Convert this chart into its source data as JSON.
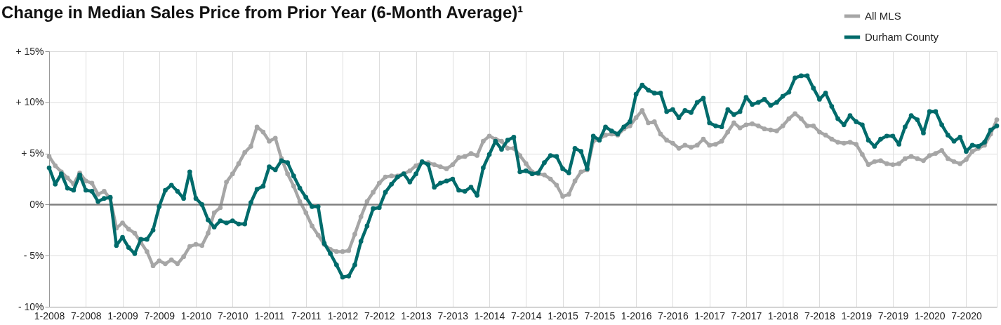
{
  "chart_data": {
    "type": "line",
    "title": "Change in Median Sales Price from Prior Year (6-Month Average)¹",
    "categories": [
      "1-2008",
      null,
      null,
      null,
      null,
      null,
      "7-2008",
      null,
      null,
      null,
      null,
      null,
      "1-2009",
      null,
      null,
      null,
      null,
      null,
      "7-2009",
      null,
      null,
      null,
      null,
      null,
      "1-2010",
      null,
      null,
      null,
      null,
      null,
      "7-2010",
      null,
      null,
      null,
      null,
      null,
      "1-2011",
      null,
      null,
      null,
      null,
      null,
      "7-2011",
      null,
      null,
      null,
      null,
      null,
      "1-2012",
      null,
      null,
      null,
      null,
      null,
      "7-2012",
      null,
      null,
      null,
      null,
      null,
      "1-2013",
      null,
      null,
      null,
      null,
      null,
      "7-2013",
      null,
      null,
      null,
      null,
      null,
      "1-2014",
      null,
      null,
      null,
      null,
      null,
      "7-2014",
      null,
      null,
      null,
      null,
      null,
      "1-2015",
      null,
      null,
      null,
      null,
      null,
      "7-2015",
      null,
      null,
      null,
      null,
      null,
      "1-2016",
      null,
      null,
      null,
      null,
      null,
      "7-2016",
      null,
      null,
      null,
      null,
      null,
      "1-2017",
      null,
      null,
      null,
      null,
      null,
      "7-2017",
      null,
      null,
      null,
      null,
      null,
      "1-2018",
      null,
      null,
      null,
      null,
      null,
      "7-2018",
      null,
      null,
      null,
      null,
      null,
      "1-2019",
      null,
      null,
      null,
      null,
      null,
      "7-2019",
      null,
      null,
      null,
      null,
      null,
      "1-2020",
      null,
      null,
      null,
      null,
      null,
      "7-2020",
      null,
      null,
      null,
      null,
      null
    ],
    "series": [
      {
        "name": "All MLS",
        "color": "#a6a6a6",
        "values": [
          4.7,
          3.8,
          3.2,
          2.6,
          2.0,
          3.1,
          2.3,
          2.1,
          1.0,
          1.3,
          0.6,
          -2.3,
          -1.8,
          -2.4,
          -2.8,
          -3.7,
          -4.6,
          -6.0,
          -5.5,
          -5.8,
          -5.4,
          -5.8,
          -5.1,
          -4.1,
          -3.9,
          -4.0,
          -2.8,
          -0.8,
          -0.3,
          2.2,
          3.0,
          4.0,
          5.1,
          5.7,
          7.6,
          7.1,
          6.2,
          6.5,
          4.5,
          3.0,
          1.8,
          0.3,
          -0.8,
          -2.1,
          -3.0,
          -3.9,
          -4.4,
          -4.6,
          -4.6,
          -4.5,
          -2.9,
          -1.2,
          0.3,
          1.2,
          2.1,
          2.7,
          2.8,
          2.8,
          3.0,
          3.3,
          3.8,
          4.1,
          4.1,
          3.9,
          3.7,
          3.5,
          3.9,
          4.6,
          4.7,
          5.0,
          4.8,
          6.2,
          6.7,
          6.4,
          6.2,
          5.5,
          5.5,
          4.8,
          4.0,
          3.2,
          3.0,
          2.9,
          2.5,
          1.9,
          0.8,
          1.0,
          2.3,
          3.2,
          3.4,
          6.2,
          6.4,
          6.8,
          6.9,
          6.8,
          7.4,
          7.7,
          8.5,
          9.2,
          8.0,
          8.1,
          6.9,
          6.3,
          6.0,
          5.5,
          5.8,
          5.6,
          5.8,
          6.4,
          5.8,
          5.9,
          6.2,
          7.1,
          8.0,
          7.5,
          7.8,
          7.9,
          7.7,
          7.4,
          7.3,
          7.2,
          7.7,
          8.4,
          8.9,
          8.4,
          7.7,
          7.7,
          7.1,
          6.8,
          6.4,
          6.1,
          6.0,
          6.1,
          5.9,
          4.9,
          3.9,
          4.2,
          4.3,
          4.0,
          3.9,
          4.0,
          4.5,
          4.7,
          4.5,
          4.3,
          4.8,
          5.0,
          5.3,
          4.5,
          4.2,
          4.0,
          4.4,
          5.2,
          5.5,
          5.8,
          6.9,
          8.3
        ]
      },
      {
        "name": "Durham County",
        "color": "#006b6b",
        "values": [
          3.6,
          2.0,
          3.0,
          1.6,
          1.4,
          2.9,
          1.4,
          1.3,
          0.3,
          0.6,
          0.7,
          -4.0,
          -3.2,
          -4.2,
          -4.8,
          -3.4,
          -3.4,
          -2.5,
          -0.2,
          1.4,
          1.9,
          1.3,
          0.6,
          3.2,
          0.6,
          0.0,
          -1.5,
          -2.2,
          -1.6,
          -1.8,
          -1.6,
          -1.9,
          -1.9,
          0.2,
          1.5,
          1.8,
          3.7,
          3.4,
          4.3,
          4.1,
          2.8,
          1.6,
          0.7,
          -0.2,
          -0.2,
          -3.8,
          -4.8,
          -5.9,
          -7.1,
          -7.0,
          -5.9,
          -3.6,
          -2.1,
          -0.4,
          -0.3,
          1.2,
          2.0,
          2.7,
          3.0,
          2.2,
          3.0,
          4.2,
          3.9,
          1.7,
          2.1,
          2.3,
          2.5,
          1.4,
          1.3,
          1.7,
          0.9,
          3.6,
          4.9,
          6.2,
          5.4,
          6.3,
          6.6,
          3.2,
          3.3,
          3.0,
          3.1,
          4.1,
          4.8,
          4.7,
          3.5,
          3.1,
          5.5,
          5.2,
          3.5,
          6.7,
          6.3,
          7.6,
          7.2,
          6.9,
          7.6,
          8.1,
          10.8,
          11.7,
          11.2,
          10.9,
          10.9,
          9.1,
          9.3,
          8.5,
          9.2,
          9.0,
          10.0,
          10.4,
          8.0,
          7.7,
          7.6,
          9.3,
          8.8,
          9.1,
          10.5,
          9.8,
          10.0,
          10.3,
          9.7,
          10.0,
          10.6,
          11.0,
          12.4,
          12.6,
          12.6,
          11.4,
          10.3,
          10.9,
          9.6,
          8.4,
          7.8,
          8.7,
          8.1,
          7.8,
          6.3,
          5.7,
          6.4,
          6.7,
          6.7,
          5.9,
          7.6,
          8.7,
          8.3,
          7.0,
          9.1,
          9.1,
          7.8,
          6.8,
          6.2,
          6.6,
          5.2,
          5.8,
          5.7,
          6.1,
          7.3,
          7.7
        ]
      }
    ],
    "ylim": [
      -10,
      15
    ],
    "yticks": [
      {
        "value": -10,
        "label": "- 10%"
      },
      {
        "value": -5,
        "label": "- 5%"
      },
      {
        "value": 0,
        "label": "0%"
      },
      {
        "value": 5,
        "label": "+ 5%"
      },
      {
        "value": 10,
        "label": "+ 10%"
      },
      {
        "value": 15,
        "label": "+ 15%"
      }
    ],
    "ref_lines": [
      {
        "axis": "y",
        "value": 0,
        "color": "#808080"
      }
    ],
    "grid": true,
    "legend": "top right",
    "marker": "circle",
    "line_style": "solid"
  }
}
